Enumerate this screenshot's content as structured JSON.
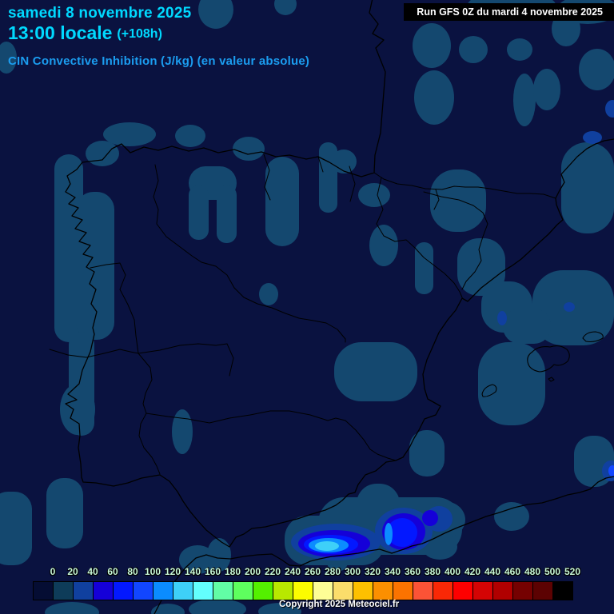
{
  "header": {
    "date": "samedi 8 novembre 2025",
    "time": "13:00 locale",
    "offset": "(+108h)",
    "subtitle": "CIN Convective Inhibition (J/kg) (en valeur absolue)"
  },
  "run_box": {
    "text": "Run GFS 0Z du mardi 4 novembre 2025"
  },
  "footer": {
    "copyright": "Copyright 2025 Meteociel.fr"
  },
  "legend": {
    "values": [
      0,
      20,
      40,
      60,
      80,
      100,
      120,
      140,
      160,
      180,
      200,
      220,
      240,
      260,
      280,
      300,
      320,
      340,
      360,
      380,
      400,
      420,
      440,
      460,
      480,
      500,
      520
    ],
    "colors": [
      "#050d33",
      "#0e3c59",
      "#10409f",
      "#1500d8",
      "#0318ff",
      "#1246ff",
      "#0b8cff",
      "#3ed0f8",
      "#63fffd",
      "#62fda5",
      "#5eff5e",
      "#54f000",
      "#b8e800",
      "#fcfc00",
      "#fdfd96",
      "#fbdd6b",
      "#fdc000",
      "#fb8f00",
      "#fb7300",
      "#fb5336",
      "#f92806",
      "#fe0000",
      "#d40404",
      "#b00000",
      "#750101",
      "#5c0202",
      "#000000"
    ]
  },
  "theme": {
    "background": "#0a1240",
    "patch": "#14486f",
    "title_cyan": "#00d9ff",
    "subtitle_blue": "#1b9df0",
    "tick_color": "#c8f8d8",
    "spot_blue": "#1743c0"
  }
}
